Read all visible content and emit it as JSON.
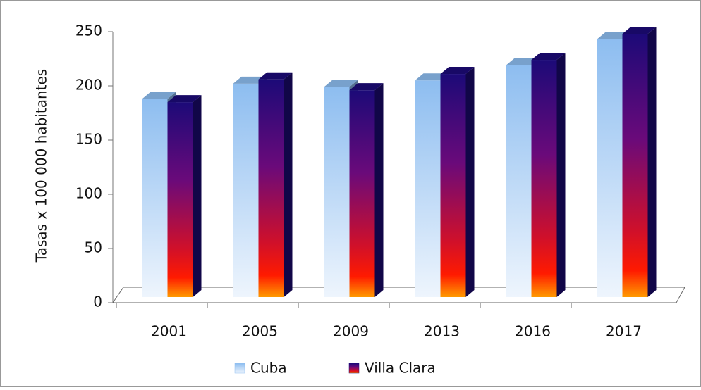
{
  "chart_data": {
    "type": "bar3d",
    "y_label": "Tasas x 100 000 habitantes",
    "categories": [
      "2001",
      "2005",
      "2009",
      "2013",
      "2016",
      "2017"
    ],
    "series": [
      {
        "name": "Cuba",
        "color": "#8dbdf0",
        "values": [
          188,
          202,
          199,
          205,
          219,
          243
        ]
      },
      {
        "name": "Villa Clara",
        "color": "#1c0a78",
        "values": [
          185,
          206,
          196,
          211,
          224,
          248
        ]
      }
    ],
    "ylim": [
      0,
      250
    ],
    "yticks": [
      0,
      50,
      100,
      150,
      200,
      250
    ]
  }
}
